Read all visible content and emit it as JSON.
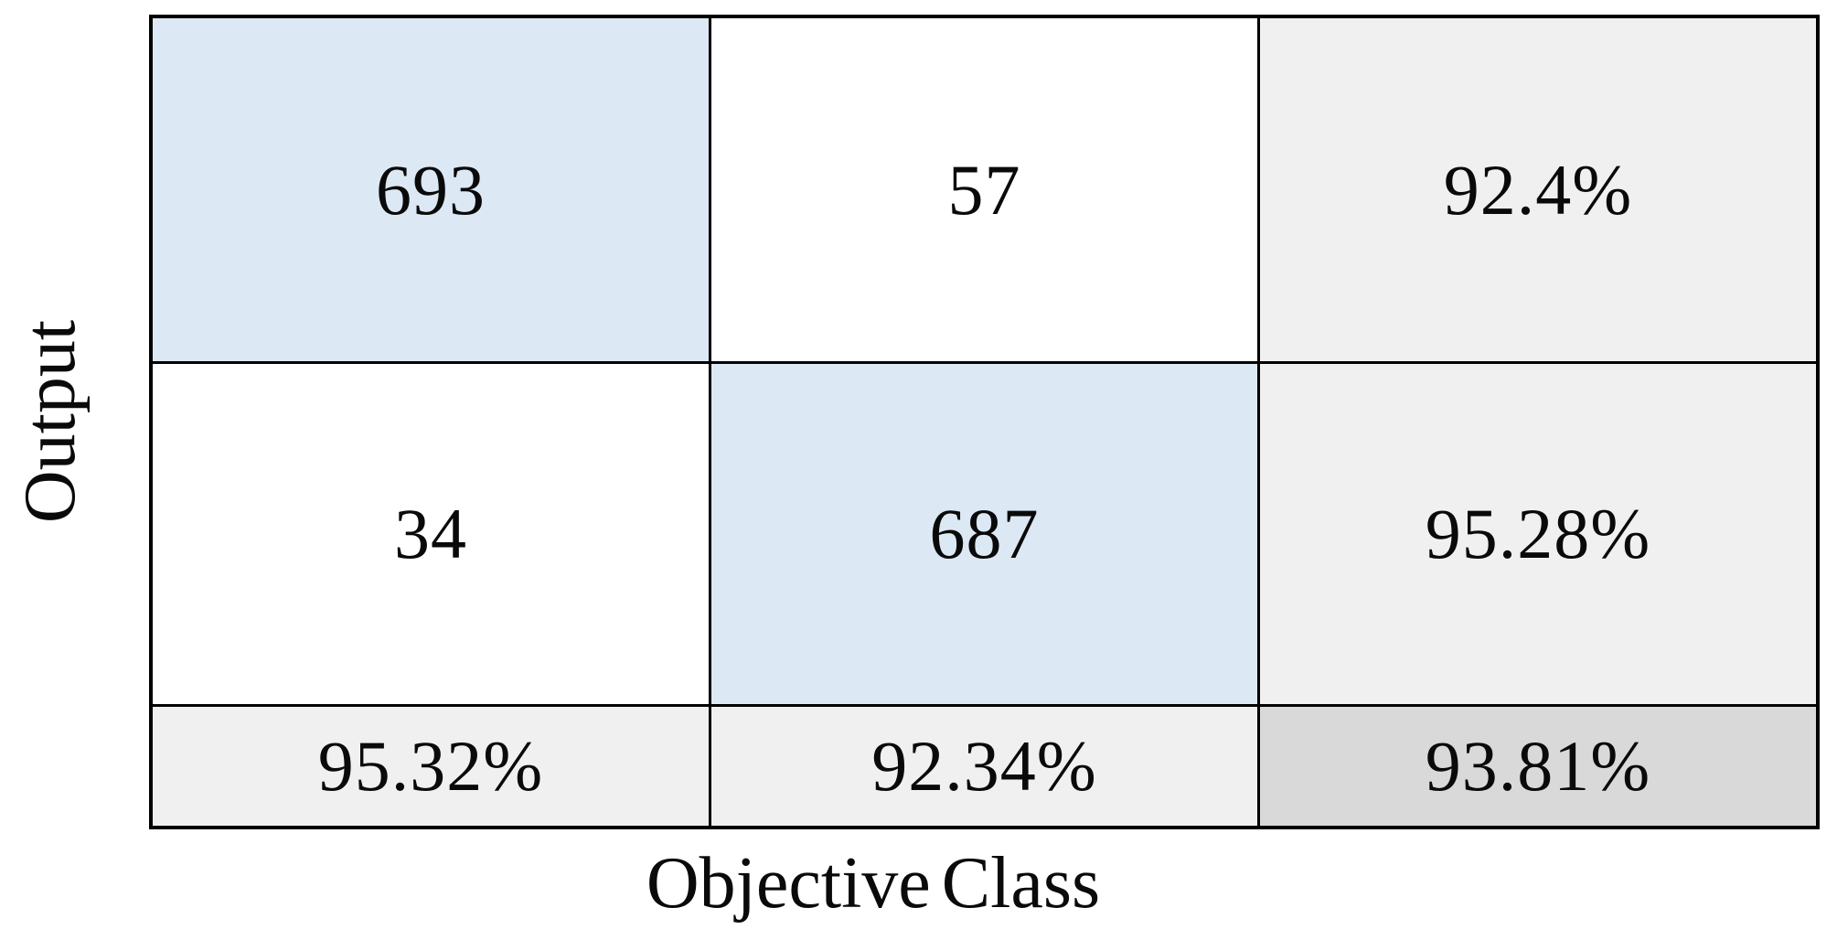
{
  "chart_data": {
    "type": "heatmap",
    "subtype": "confusion-matrix",
    "title": "",
    "xlabel": "Objective Class",
    "ylabel": "Output",
    "classes": 2,
    "matrix_counts": [
      [
        693,
        57
      ],
      [
        34,
        687
      ]
    ],
    "row_percentages": [
      "92.4%",
      "95.28%"
    ],
    "column_percentages": [
      "95.32%",
      "92.34%"
    ],
    "overall_percentage": "93.81%",
    "layout": {
      "grid_rows": 3,
      "grid_cols": 3,
      "highlight": "diagonal cells shaded blue, summary row/column shaded gray, overall cell darker gray"
    }
  },
  "cells": {
    "r0c0": "693",
    "r0c1": "57",
    "r0c2": "92.4%",
    "r1c0": "34",
    "r1c1": "687",
    "r1c2": "95.28%",
    "r2c0": "95.32%",
    "r2c1": "92.34%",
    "r2c2": "93.81%"
  },
  "labels": {
    "x": "Objective Class",
    "y": "Output"
  },
  "colors": {
    "diagonal_cell": "#dce9f5",
    "offdiagonal_cell": "#ffffff",
    "summary_cell": "#f0f0f1",
    "overall_cell": "#d9d9d9",
    "border": "#000000",
    "text": "#0a0a0a"
  }
}
